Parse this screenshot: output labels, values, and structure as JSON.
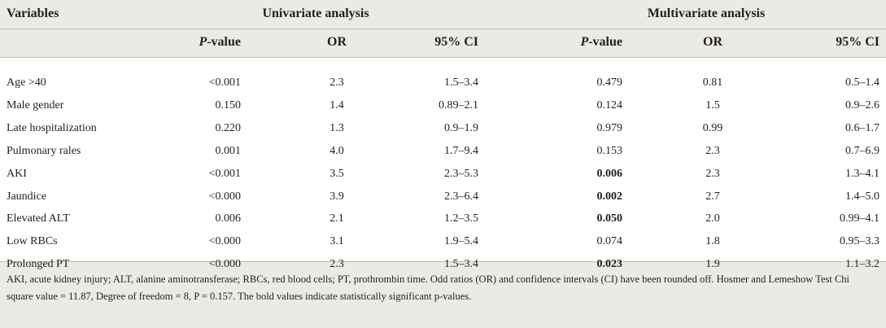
{
  "header": {
    "variables": "Variables",
    "univariate": "Univariate analysis",
    "multivariate": "Multivariate analysis",
    "p_label": "P",
    "p_suffix": "-value",
    "or": "OR",
    "ci": "95% CI"
  },
  "rows": [
    {
      "variable": "Age >40",
      "u_p": "<0.001",
      "u_or": "2.3",
      "u_ci": "1.5–3.4",
      "m_p": "0.479",
      "m_or": "0.81",
      "m_ci": "0.5–1.4",
      "m_bold": false
    },
    {
      "variable": "Male gender",
      "u_p": "0.150",
      "u_or": "1.4",
      "u_ci": "0.89–2.1",
      "m_p": "0.124",
      "m_or": "1.5",
      "m_ci": "0.9–2.6",
      "m_bold": false
    },
    {
      "variable": "Late hospitalization",
      "u_p": "0.220",
      "u_or": "1.3",
      "u_ci": "0.9–1.9",
      "m_p": "0.979",
      "m_or": "0.99",
      "m_ci": "0.6–1.7",
      "m_bold": false
    },
    {
      "variable": "Pulmonary rales",
      "u_p": "0.001",
      "u_or": "4.0",
      "u_ci": "1.7–9.4",
      "m_p": "0.153",
      "m_or": "2.3",
      "m_ci": "0.7–6.9",
      "m_bold": false
    },
    {
      "variable": "AKI",
      "u_p": "<0.001",
      "u_or": "3.5",
      "u_ci": "2.3–5.3",
      "m_p": "0.006",
      "m_or": "2.3",
      "m_ci": "1.3–4.1",
      "m_bold": true
    },
    {
      "variable": "Jaundice",
      "u_p": "<0.000",
      "u_or": "3.9",
      "u_ci": "2.3–6.4",
      "m_p": "0.002",
      "m_or": "2.7",
      "m_ci": "1.4–5.0",
      "m_bold": true
    },
    {
      "variable": "Elevated ALT",
      "u_p": "0.006",
      "u_or": "2.1",
      "u_ci": "1.2–3.5",
      "m_p": "0.050",
      "m_or": "2.0",
      "m_ci": "0.99–4.1",
      "m_bold": true
    },
    {
      "variable": "Low RBCs",
      "u_p": "<0.000",
      "u_or": "3.1",
      "u_ci": "1.9–5.4",
      "m_p": "0.074",
      "m_or": "1.8",
      "m_ci": "0.95–3.3",
      "m_bold": false
    },
    {
      "variable": "Prolonged PT",
      "u_p": "<0.000",
      "u_or": "2.3",
      "u_ci": "1.5–3.4",
      "m_p": "0.023",
      "m_or": "1.9",
      "m_ci": "1.1–3.2",
      "m_bold": true
    }
  ],
  "footnote": "AKI, acute kidney injury; ALT, alanine aminotransferase; RBCs, red blood cells; PT, prothrombin time. Odd ratios (OR) and confidence intervals (CI) have been rounded off. Hosmer and Lemeshow Test Chi square value = 11.87, Degree of freedom = 8, P = 0.157. The bold values indicate statistically significant p-values."
}
